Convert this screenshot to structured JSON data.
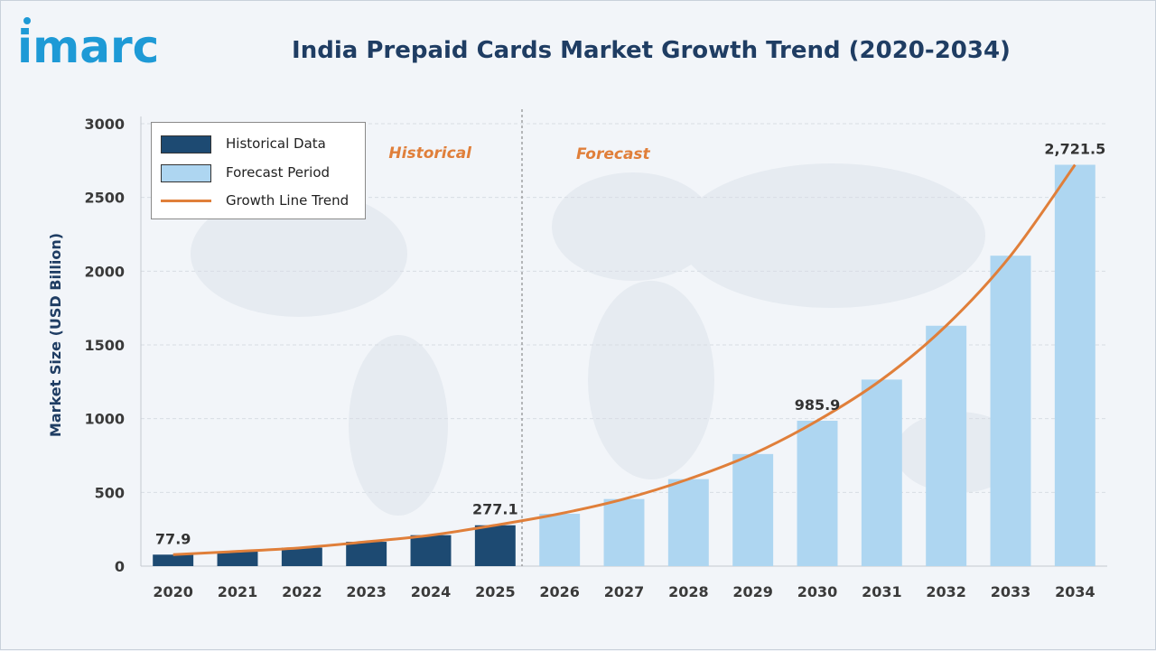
{
  "brand": {
    "logo_text": "imarc",
    "color": "#1e9ad6"
  },
  "colors": {
    "historical": "#1d4a72",
    "forecast": "#aed6f1",
    "trend": "#e07f3a",
    "title": "#1f3d63"
  },
  "legend": {
    "placement": "top-left",
    "items": [
      {
        "label": "Historical Data"
      },
      {
        "label": "Forecast Period"
      },
      {
        "label": "Growth Line Trend"
      }
    ]
  },
  "regions": {
    "historical_label": "Historical",
    "forecast_label": "Forecast"
  },
  "chart_data": {
    "type": "bar",
    "title": "India Prepaid Cards Market Growth Trend (2020-2034)",
    "xlabel": "",
    "ylabel": "Market Size (USD Billion)",
    "ylim": [
      0,
      3000
    ],
    "yticks": [
      0,
      500,
      1000,
      1500,
      2000,
      2500,
      3000
    ],
    "grid": true,
    "categories": [
      "2020",
      "2021",
      "2022",
      "2023",
      "2024",
      "2025",
      "2026",
      "2027",
      "2028",
      "2029",
      "2030",
      "2031",
      "2032",
      "2033",
      "2034"
    ],
    "values": [
      77.9,
      100,
      125,
      165,
      210,
      277.1,
      355,
      455,
      590,
      760,
      985.9,
      1265,
      1630,
      2105,
      2721.5
    ],
    "period": [
      "historical",
      "historical",
      "historical",
      "historical",
      "historical",
      "historical",
      "forecast",
      "forecast",
      "forecast",
      "forecast",
      "forecast",
      "forecast",
      "forecast",
      "forecast",
      "forecast"
    ],
    "series": [
      {
        "name": "Historical Data",
        "categories": [
          "2020",
          "2021",
          "2022",
          "2023",
          "2024",
          "2025"
        ]
      },
      {
        "name": "Forecast Period",
        "categories": [
          "2026",
          "2027",
          "2028",
          "2029",
          "2030",
          "2031",
          "2032",
          "2033",
          "2034"
        ]
      },
      {
        "name": "Growth Line Trend",
        "type": "line"
      }
    ],
    "data_labels": [
      {
        "category": "2020",
        "text": "77.9"
      },
      {
        "category": "2025",
        "text": "277.1"
      },
      {
        "category": "2030",
        "text": "985.9"
      },
      {
        "category": "2034",
        "text": "2,721.5"
      }
    ],
    "divider_after": "2025"
  }
}
